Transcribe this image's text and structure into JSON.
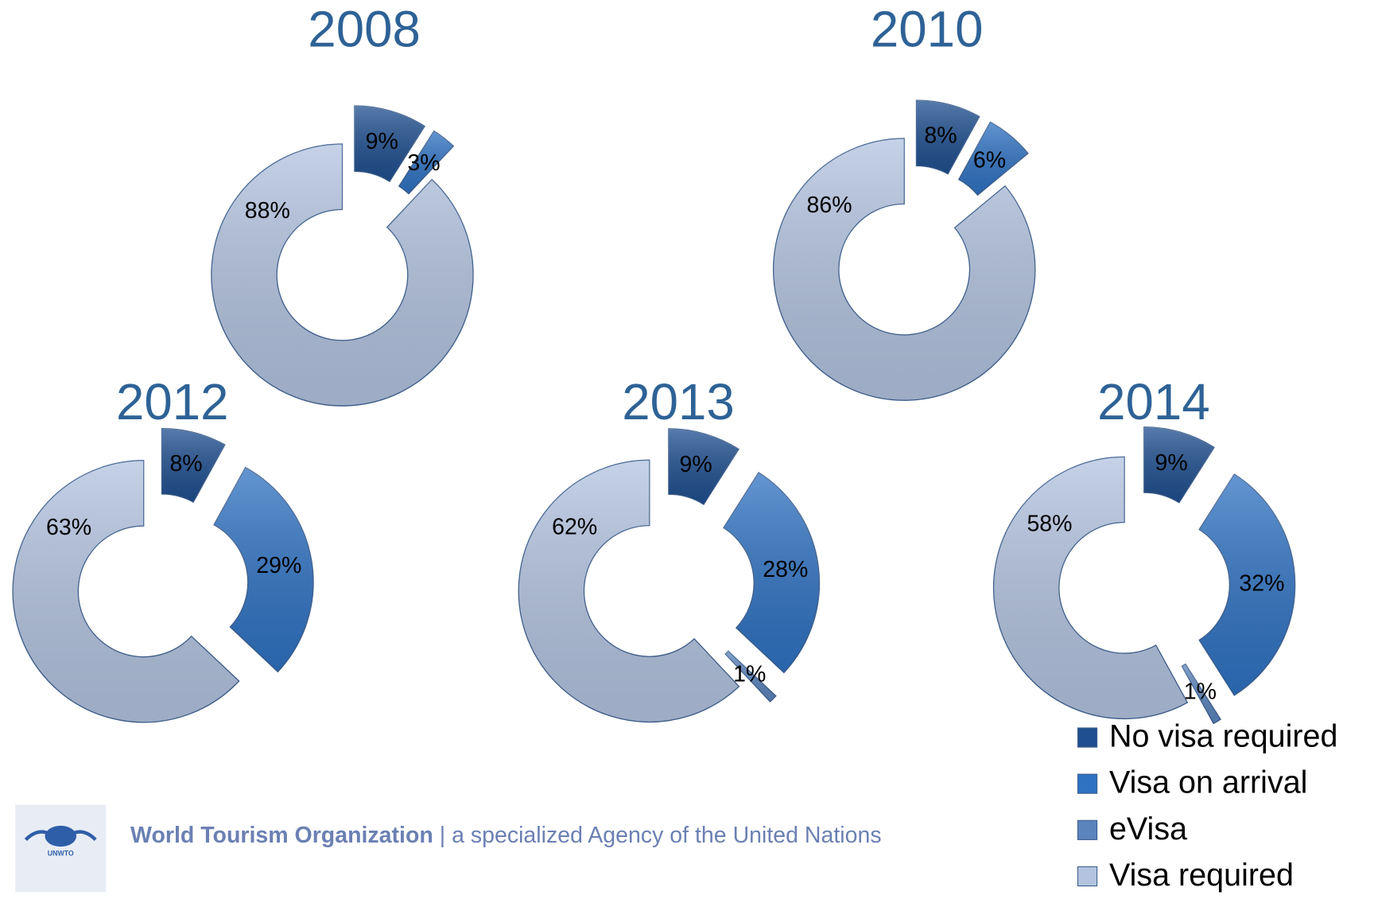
{
  "legend": {
    "entries": [
      {
        "name": "No visa required",
        "color": "#1f4f8f"
      },
      {
        "name": "Visa on arrival",
        "color": "#2f72c2"
      },
      {
        "name": "eVisa",
        "color": "#5b84bd"
      },
      {
        "name": "Visa required",
        "color": "#b3c3e0"
      }
    ]
  },
  "chart_data": [
    {
      "type": "donut",
      "title": "2008",
      "values": [
        9,
        3,
        null,
        88
      ],
      "value_labels": [
        "9%",
        "3%",
        null,
        "88%"
      ]
    },
    {
      "type": "donut",
      "title": "2010",
      "values": [
        8,
        6,
        null,
        86
      ],
      "value_labels": [
        "8%",
        "6%",
        null,
        "86%"
      ]
    },
    {
      "type": "donut",
      "title": "2012",
      "values": [
        8,
        29,
        null,
        63
      ],
      "value_labels": [
        "8%",
        "29%",
        null,
        "63%"
      ]
    },
    {
      "type": "donut",
      "title": "2013",
      "values": [
        9,
        28,
        1,
        62
      ],
      "value_labels": [
        "9%",
        "28%",
        "1%",
        "62%"
      ]
    },
    {
      "type": "donut",
      "title": "2014",
      "values": [
        9,
        32,
        1,
        58
      ],
      "value_labels": [
        "9%",
        "32%",
        "1%",
        "58%"
      ]
    }
  ],
  "footer": {
    "logo_text": "UNWTO",
    "org": "World Tourism Organization",
    "tagline": "| a specialized Agency of the United Nations"
  }
}
